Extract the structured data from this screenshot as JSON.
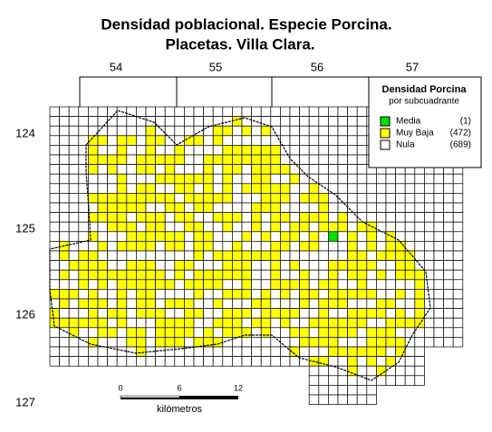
{
  "title": [
    "Densidad poblacional. Especie Porcina.",
    "Placetas. Villa Clara."
  ],
  "columns": [
    "54",
    "55",
    "56",
    "57"
  ],
  "rows": [
    "124",
    "125",
    "126",
    "127"
  ],
  "legend": {
    "title": "Densidad Porcina",
    "subtitle": "por subcuadrante",
    "entries": [
      {
        "name": "Media",
        "count": "(1)",
        "color": "#00e000"
      },
      {
        "name": "Muy Baja",
        "count": "(472)",
        "color": "#ffff00"
      },
      {
        "name": "Nula",
        "count": "(689)",
        "color": "#ffffff"
      }
    ]
  },
  "scale": {
    "ticks": [
      "0",
      "6",
      "12"
    ],
    "unit": "kilómetros"
  }
}
